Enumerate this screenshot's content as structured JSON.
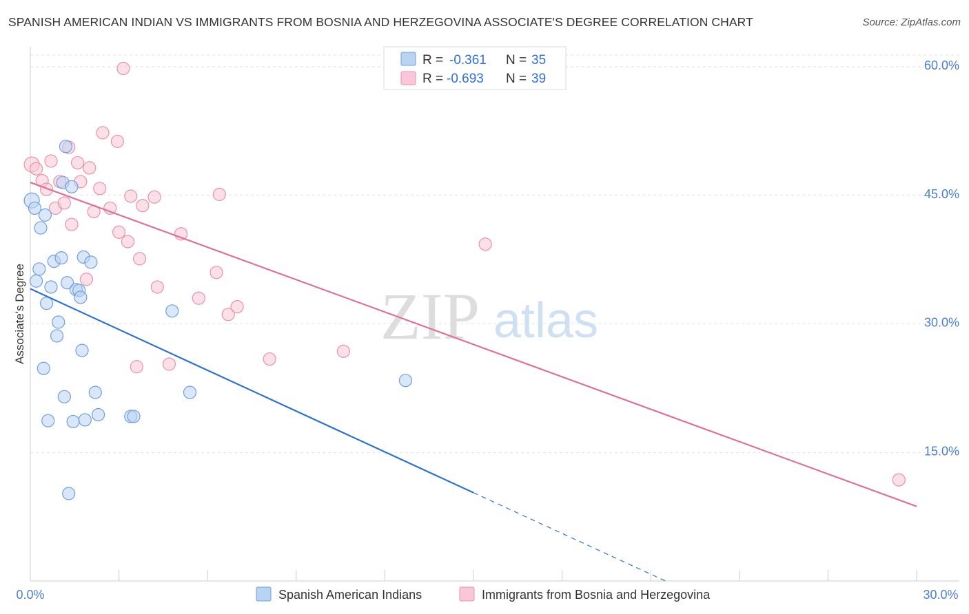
{
  "header": {
    "title": "SPANISH AMERICAN INDIAN VS IMMIGRANTS FROM BOSNIA AND HERZEGOVINA ASSOCIATE'S DEGREE CORRELATION CHART",
    "source": "Source: ZipAtlas.com"
  },
  "watermark": {
    "part1": "ZIP",
    "part2": "atlas"
  },
  "legend": {
    "rows": [
      {
        "r_label": "R =",
        "r_value": "-0.361",
        "n_label": "N =",
        "n_value": "35"
      },
      {
        "r_label": "R =",
        "r_value": "-0.693",
        "n_label": "N =",
        "n_value": "39"
      }
    ]
  },
  "bottom_legend": {
    "series1": "Spanish American Indians",
    "series2": "Immigrants from Bosnia and Herzegovina"
  },
  "chart_data": {
    "type": "scatter",
    "ylabel": "Associate's Degree",
    "xlabel": "",
    "xlim": [
      0,
      30
    ],
    "ylim": [
      0,
      60
    ],
    "x_tick_labels": [
      "0.0%",
      "30.0%"
    ],
    "y_ticks": [
      15,
      30,
      45,
      60
    ],
    "y_tick_labels": [
      "15.0%",
      "30.0%",
      "45.0%",
      "60.0%"
    ],
    "grid": true,
    "colors": {
      "series1_fill": "#b9d3f2",
      "series1_stroke": "#6f9fe0",
      "series1_line": "#2e72d2",
      "series2_fill": "#f9c7d6",
      "series2_stroke": "#e891ad",
      "series2_line": "#e0709a"
    },
    "series": [
      {
        "name": "Spanish American Indians",
        "points": [
          [
            0.05,
            44.4
          ],
          [
            0.15,
            43.5
          ],
          [
            0.2,
            35.0
          ],
          [
            0.3,
            36.4
          ],
          [
            0.35,
            41.2
          ],
          [
            0.45,
            24.8
          ],
          [
            0.5,
            42.7
          ],
          [
            0.55,
            32.4
          ],
          [
            0.6,
            18.7
          ],
          [
            0.7,
            34.3
          ],
          [
            0.8,
            37.3
          ],
          [
            0.9,
            28.6
          ],
          [
            0.95,
            30.2
          ],
          [
            1.05,
            37.7
          ],
          [
            1.1,
            46.5
          ],
          [
            1.15,
            21.5
          ],
          [
            1.2,
            50.7
          ],
          [
            1.25,
            34.8
          ],
          [
            1.3,
            10.2
          ],
          [
            1.4,
            46.0
          ],
          [
            1.45,
            18.6
          ],
          [
            1.55,
            34.0
          ],
          [
            1.65,
            33.9
          ],
          [
            1.7,
            33.1
          ],
          [
            1.75,
            26.9
          ],
          [
            1.8,
            37.8
          ],
          [
            1.85,
            18.8
          ],
          [
            2.05,
            37.2
          ],
          [
            2.2,
            22.0
          ],
          [
            2.3,
            19.4
          ],
          [
            3.4,
            19.2
          ],
          [
            3.5,
            19.2
          ],
          [
            4.8,
            31.5
          ],
          [
            5.4,
            22.0
          ],
          [
            12.7,
            23.4
          ]
        ],
        "trend": {
          "x0": 0,
          "y0": 34.1,
          "x1": 15.0,
          "y1": 10.3,
          "dash_to_x": 21.5,
          "dash_to_y": 0
        }
      },
      {
        "name": "Immigrants from Bosnia and Herzegovina",
        "points": [
          [
            0.05,
            48.6
          ],
          [
            0.2,
            48.1
          ],
          [
            0.4,
            46.7
          ],
          [
            0.55,
            45.7
          ],
          [
            0.7,
            49.0
          ],
          [
            0.85,
            43.5
          ],
          [
            1.0,
            46.6
          ],
          [
            1.15,
            44.1
          ],
          [
            1.3,
            50.6
          ],
          [
            1.4,
            41.6
          ],
          [
            1.6,
            48.8
          ],
          [
            1.7,
            46.6
          ],
          [
            1.9,
            35.2
          ],
          [
            2.0,
            48.2
          ],
          [
            2.15,
            43.1
          ],
          [
            2.35,
            45.8
          ],
          [
            2.45,
            52.3
          ],
          [
            2.7,
            43.5
          ],
          [
            2.95,
            51.3
          ],
          [
            3.0,
            40.7
          ],
          [
            3.3,
            39.6
          ],
          [
            3.4,
            44.9
          ],
          [
            3.6,
            25.0
          ],
          [
            3.7,
            37.6
          ],
          [
            3.8,
            43.8
          ],
          [
            4.2,
            44.8
          ],
          [
            4.3,
            34.3
          ],
          [
            4.7,
            25.3
          ],
          [
            5.1,
            40.5
          ],
          [
            5.7,
            33.0
          ],
          [
            6.3,
            36.0
          ],
          [
            6.4,
            45.1
          ],
          [
            6.7,
            31.1
          ],
          [
            7.0,
            32.0
          ],
          [
            8.1,
            25.9
          ],
          [
            10.6,
            26.8
          ],
          [
            3.15,
            59.8
          ],
          [
            15.4,
            39.3
          ],
          [
            29.4,
            11.8
          ]
        ],
        "trend": {
          "x0": 0,
          "y0": 46.5,
          "x1": 30.0,
          "y1": 8.7
        }
      }
    ]
  }
}
